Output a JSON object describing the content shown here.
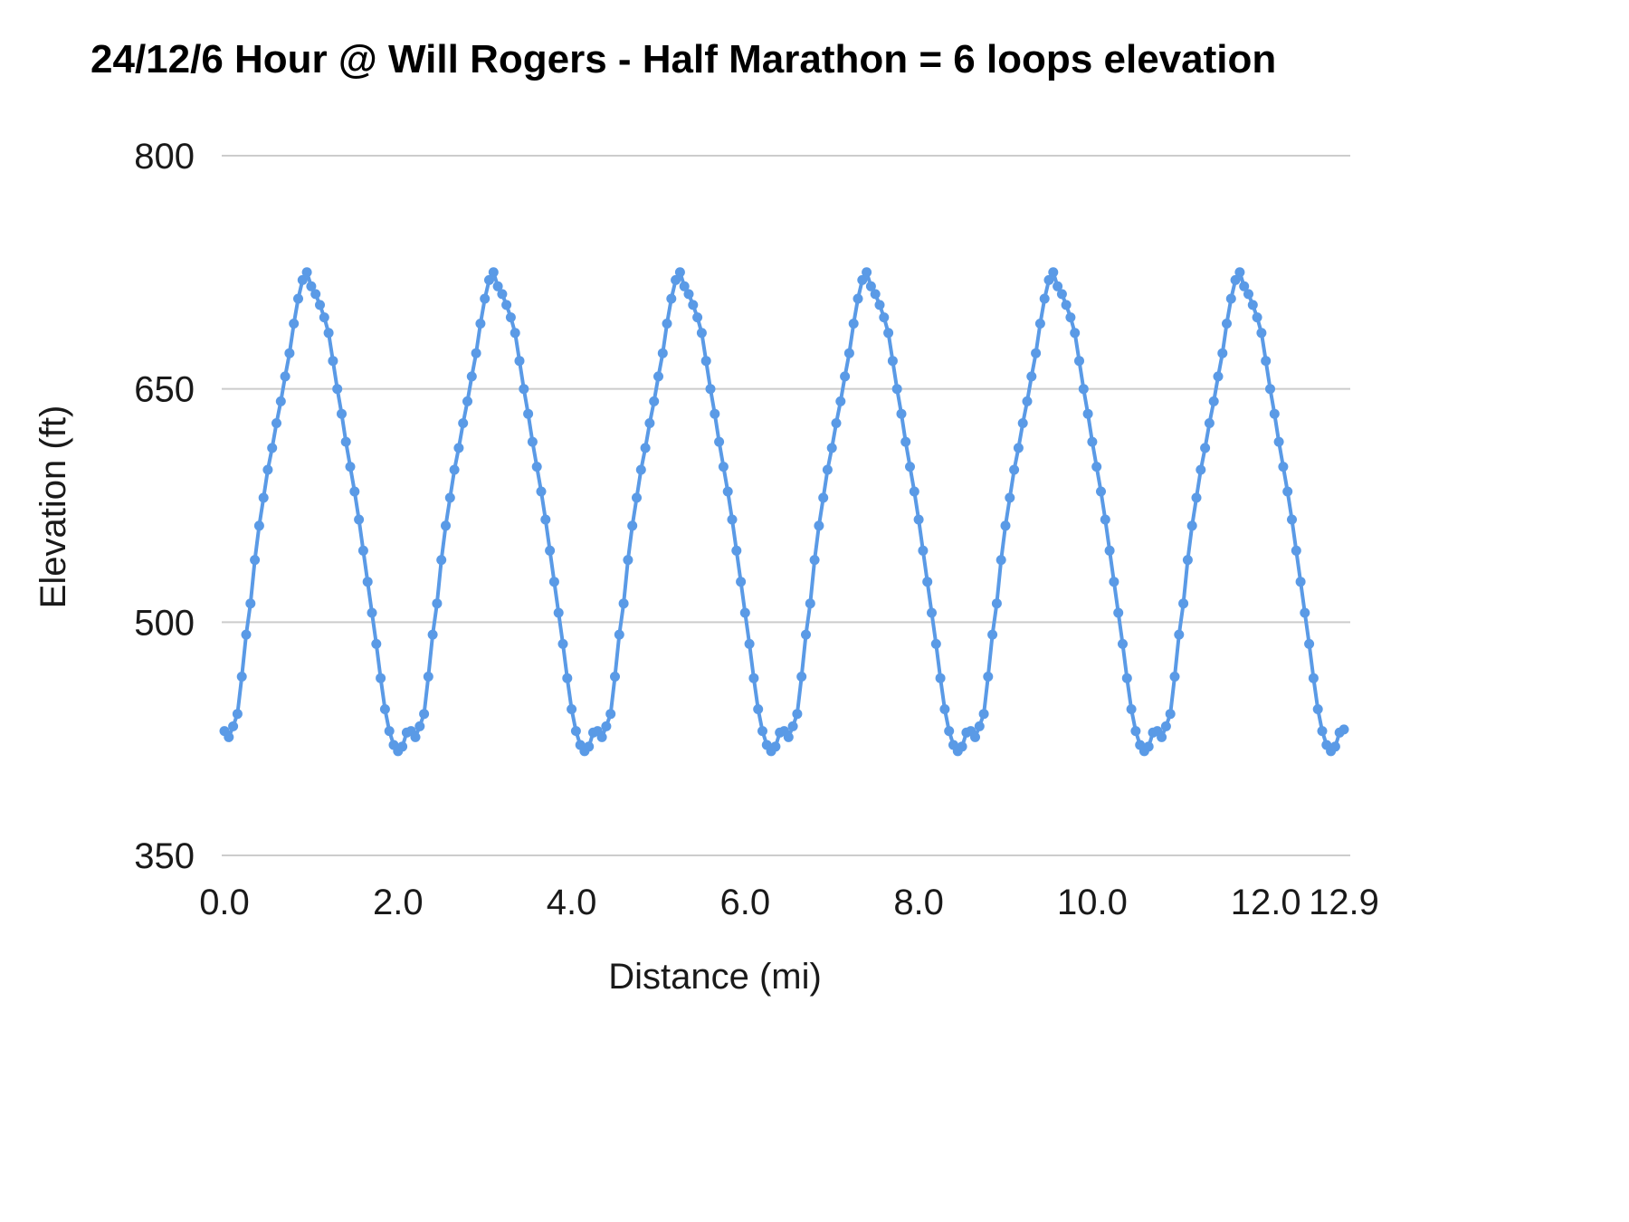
{
  "chart_data": {
    "type": "line",
    "title": "24/12/6 Hour @ Will Rogers  - Half Marathon = 6 loops  elevation",
    "xlabel": "Distance (mi)",
    "ylabel": "Elevation (ft)",
    "ylim": [
      350,
      800
    ],
    "xlim": [
      0,
      13.05
    ],
    "y_ticks": [
      350,
      500,
      650,
      800
    ],
    "y_tick_labels": [
      "350",
      "500",
      "650",
      "800"
    ],
    "x_tick_values": [
      0,
      2,
      4,
      6,
      8,
      10,
      12,
      12.9
    ],
    "x_tick_labels": [
      "0.0",
      "2.0",
      "4.0",
      "6.0",
      "8.0",
      "10.0",
      "12.0",
      "12.9"
    ],
    "grid": "horizontal",
    "legend": "none",
    "line_color": "#5a9ae6",
    "marker_color": "#5a9ae6",
    "grid_color": "#cccccc",
    "loops": 6,
    "loop_length_mi": 2.15,
    "loop_profile": [
      [
        0.0,
        430
      ],
      [
        0.05,
        426
      ],
      [
        0.1,
        433
      ],
      [
        0.15,
        441
      ],
      [
        0.2,
        465
      ],
      [
        0.25,
        492
      ],
      [
        0.3,
        512
      ],
      [
        0.35,
        540
      ],
      [
        0.4,
        562
      ],
      [
        0.45,
        580
      ],
      [
        0.5,
        598
      ],
      [
        0.55,
        612
      ],
      [
        0.6,
        628
      ],
      [
        0.65,
        642
      ],
      [
        0.7,
        658
      ],
      [
        0.75,
        673
      ],
      [
        0.8,
        692
      ],
      [
        0.85,
        708
      ],
      [
        0.9,
        720
      ],
      [
        0.95,
        725
      ],
      [
        1.0,
        716
      ],
      [
        1.05,
        711
      ],
      [
        1.1,
        704
      ],
      [
        1.15,
        696
      ],
      [
        1.2,
        686
      ],
      [
        1.25,
        668
      ],
      [
        1.3,
        650
      ],
      [
        1.35,
        634
      ],
      [
        1.4,
        616
      ],
      [
        1.45,
        600
      ],
      [
        1.5,
        584
      ],
      [
        1.55,
        566
      ],
      [
        1.6,
        546
      ],
      [
        1.65,
        526
      ],
      [
        1.7,
        506
      ],
      [
        1.75,
        486
      ],
      [
        1.8,
        464
      ],
      [
        1.85,
        444
      ],
      [
        1.9,
        430
      ],
      [
        1.95,
        421
      ],
      [
        2.0,
        417
      ],
      [
        2.05,
        420
      ],
      [
        2.1,
        429
      ]
    ],
    "tail_points": [
      [
        12.9,
        431
      ]
    ]
  }
}
